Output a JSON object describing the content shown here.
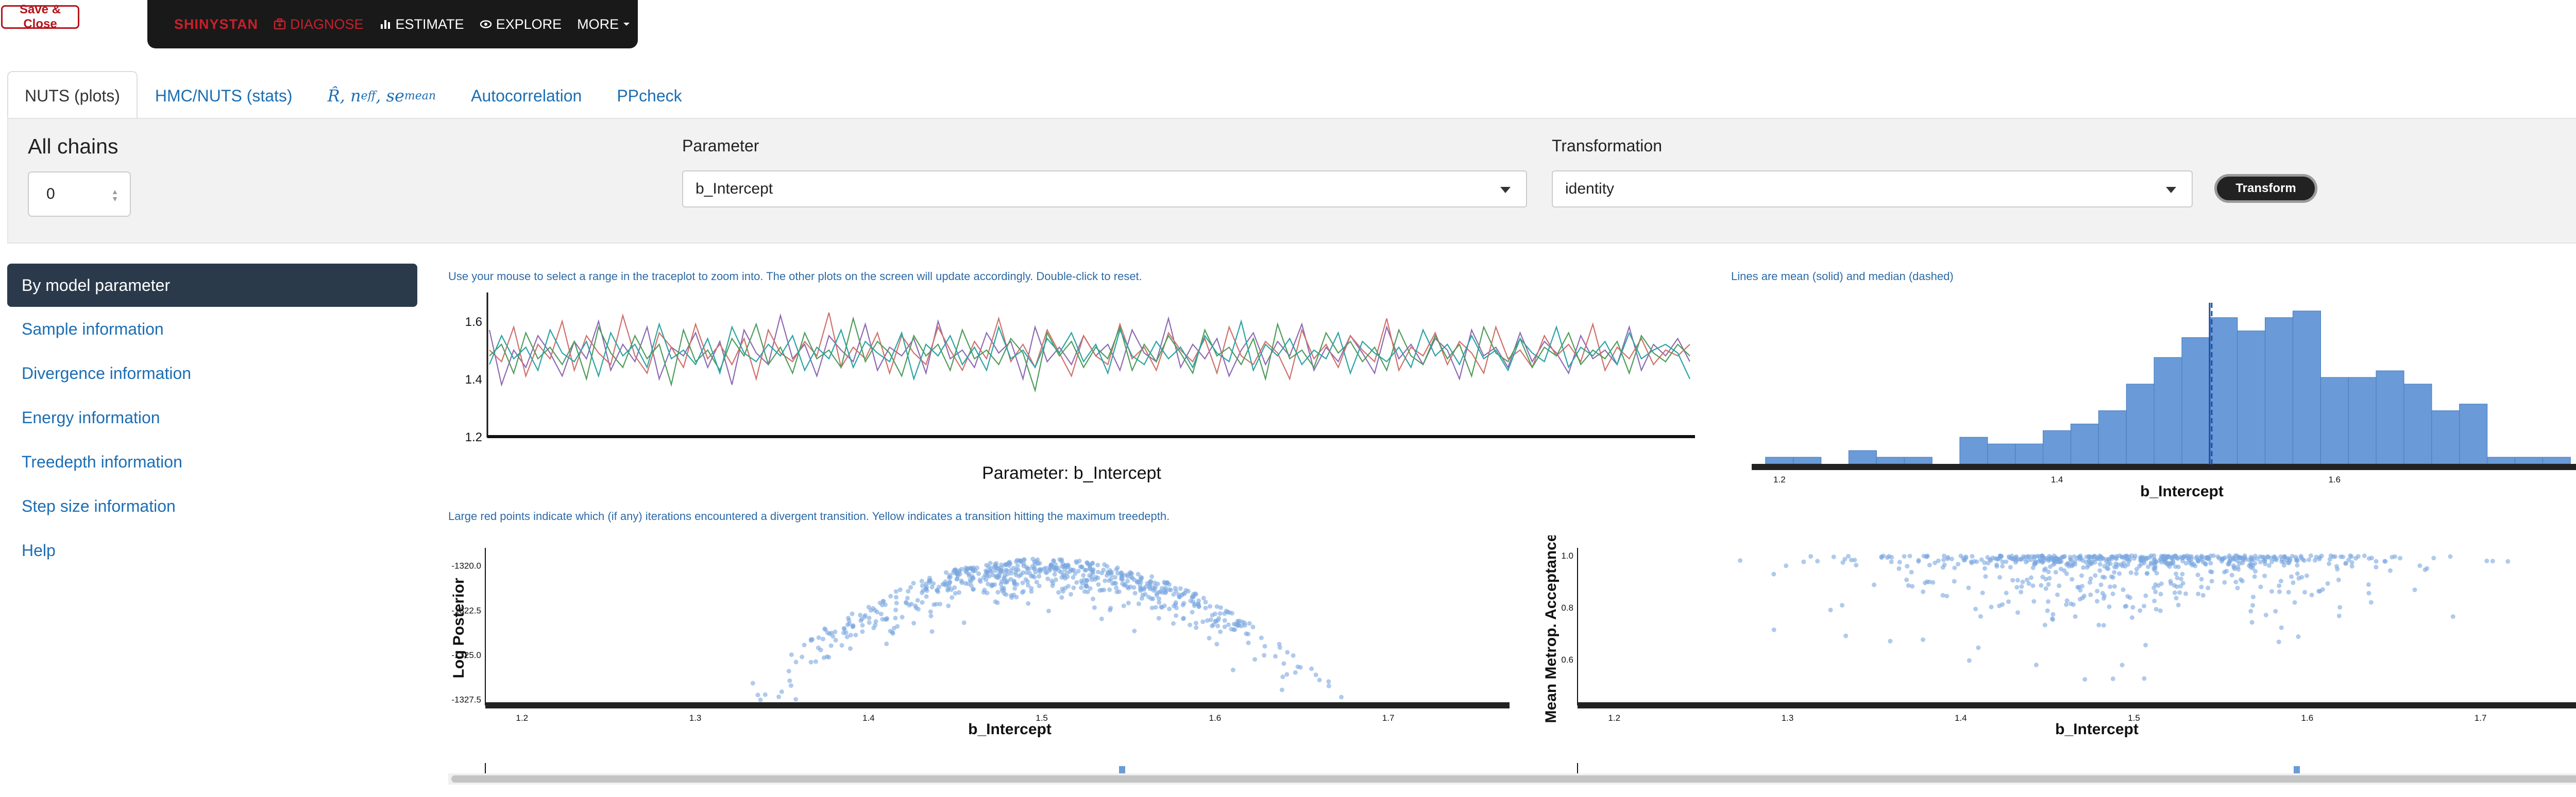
{
  "save_close": "Save & Close",
  "navbar": {
    "brand": "SHINYSTAN",
    "items": [
      {
        "label": "DIAGNOSE",
        "icon": "medkit-icon"
      },
      {
        "label": "ESTIMATE",
        "icon": "bar-chart-icon"
      },
      {
        "label": "EXPLORE",
        "icon": "eye-icon"
      },
      {
        "label": "MORE",
        "icon": "caret-down-icon"
      }
    ],
    "colors": {
      "brand": "#c8202b",
      "bg": "#191919"
    }
  },
  "tabs": [
    {
      "label": "NUTS (plots)",
      "active": true
    },
    {
      "label": "HMC/NUTS (stats)",
      "active": false
    },
    {
      "label_r": "R̂, n",
      "sub1": "eff",
      "sep": " , se",
      "sub2": "mean",
      "active": false
    },
    {
      "label": "Autocorrelation",
      "active": false
    },
    {
      "label": "PPcheck",
      "active": false
    }
  ],
  "controls": {
    "chains_title": "All chains",
    "chain_value": "0",
    "parameter_label": "Parameter",
    "parameter_value": "b_Intercept",
    "transformation_label": "Transformation",
    "transformation_value": "identity",
    "transform_button": "Transform"
  },
  "sidebar": [
    {
      "label": "By model parameter",
      "active": true
    },
    {
      "label": "Sample information"
    },
    {
      "label": "Divergence information"
    },
    {
      "label": "Energy information"
    },
    {
      "label": "Treedepth information"
    },
    {
      "label": "Step size information"
    },
    {
      "label": "Help"
    }
  ],
  "captions": {
    "trace": "Use your mouse to select a range in the traceplot to zoom into. The other plots on the screen will update accordingly. Double-click to reset.",
    "hist": "Lines are mean (solid) and median (dashed)",
    "scatter": "Large red points indicate which (if any) iterations encountered a divergent transition. Yellow indicates a transition hitting the maximum treedepth."
  },
  "chart_data": [
    {
      "type": "line",
      "title": "Parameter: b_Intercept",
      "ylim": [
        1.2,
        1.7
      ],
      "yticks": [
        "1.6",
        "1.4",
        "1.2"
      ],
      "n_iter": 100,
      "colors": [
        "#8e69b3",
        "#d0706a",
        "#4e9c5a",
        "#2aa3a3"
      ],
      "series": [
        {
          "values": [
            1.57,
            1.38,
            1.5,
            1.44,
            1.55,
            1.49,
            1.41,
            1.53,
            1.47,
            1.6,
            1.43,
            1.52,
            1.46,
            1.58,
            1.4,
            1.51,
            1.48,
            1.56,
            1.44,
            1.53,
            1.38,
            1.57,
            1.49,
            1.45,
            1.62,
            1.47,
            1.52,
            1.41,
            1.55,
            1.5,
            1.46,
            1.59,
            1.43,
            1.51,
            1.48,
            1.54,
            1.42,
            1.6,
            1.47,
            1.5,
            1.44,
            1.56,
            1.49,
            1.53,
            1.4,
            1.58,
            1.46,
            1.51,
            1.45,
            1.55,
            1.48,
            1.52,
            1.43,
            1.57,
            1.49,
            1.46,
            1.61,
            1.44,
            1.52,
            1.47,
            1.54,
            1.41,
            1.5,
            1.56,
            1.45,
            1.53,
            1.48,
            1.59,
            1.43,
            1.51,
            1.46,
            1.55,
            1.49,
            1.42,
            1.58,
            1.47,
            1.52,
            1.45,
            1.54,
            1.5,
            1.4,
            1.57,
            1.48,
            1.51,
            1.44,
            1.56,
            1.46,
            1.53,
            1.49,
            1.42,
            1.55,
            1.47,
            1.5,
            1.45,
            1.58,
            1.43,
            1.52,
            1.48,
            1.54,
            1.46
          ]
        },
        {
          "values": [
            1.5,
            1.46,
            1.58,
            1.41,
            1.52,
            1.47,
            1.6,
            1.43,
            1.55,
            1.49,
            1.45,
            1.62,
            1.48,
            1.42,
            1.56,
            1.51,
            1.44,
            1.59,
            1.47,
            1.52,
            1.45,
            1.54,
            1.4,
            1.57,
            1.49,
            1.46,
            1.53,
            1.48,
            1.63,
            1.44,
            1.51,
            1.47,
            1.56,
            1.42,
            1.55,
            1.49,
            1.45,
            1.58,
            1.5,
            1.43,
            1.53,
            1.47,
            1.61,
            1.46,
            1.52,
            1.44,
            1.57,
            1.49,
            1.41,
            1.55,
            1.48,
            1.45,
            1.59,
            1.47,
            1.51,
            1.43,
            1.56,
            1.5,
            1.46,
            1.54,
            1.42,
            1.58,
            1.48,
            1.45,
            1.53,
            1.49,
            1.4,
            1.57,
            1.47,
            1.52,
            1.44,
            1.55,
            1.5,
            1.46,
            1.61,
            1.43,
            1.51,
            1.48,
            1.56,
            1.45,
            1.53,
            1.49,
            1.42,
            1.58,
            1.47,
            1.5,
            1.44,
            1.55,
            1.48,
            1.52,
            1.46,
            1.59,
            1.43,
            1.51,
            1.47,
            1.54,
            1.45,
            1.5,
            1.48,
            1.52
          ]
        },
        {
          "values": [
            1.48,
            1.52,
            1.42,
            1.56,
            1.47,
            1.51,
            1.45,
            1.53,
            1.4,
            1.58,
            1.49,
            1.44,
            1.55,
            1.47,
            1.52,
            1.38,
            1.57,
            1.46,
            1.5,
            1.43,
            1.54,
            1.48,
            1.59,
            1.45,
            1.51,
            1.42,
            1.56,
            1.47,
            1.5,
            1.44,
            1.61,
            1.46,
            1.53,
            1.49,
            1.41,
            1.55,
            1.48,
            1.52,
            1.43,
            1.57,
            1.47,
            1.5,
            1.45,
            1.54,
            1.49,
            1.36,
            1.56,
            1.48,
            1.53,
            1.44,
            1.51,
            1.47,
            1.58,
            1.43,
            1.52,
            1.46,
            1.55,
            1.49,
            1.42,
            1.57,
            1.48,
            1.51,
            1.45,
            1.54,
            1.4,
            1.59,
            1.47,
            1.5,
            1.44,
            1.56,
            1.49,
            1.53,
            1.46,
            1.51,
            1.43,
            1.57,
            1.48,
            1.45,
            1.55,
            1.47,
            1.52,
            1.41,
            1.58,
            1.49,
            1.46,
            1.54,
            1.44,
            1.51,
            1.48,
            1.56,
            1.45,
            1.5,
            1.47,
            1.53,
            1.42,
            1.55,
            1.49,
            1.46,
            1.52,
            1.48
          ]
        },
        {
          "values": [
            1.45,
            1.55,
            1.47,
            1.51,
            1.43,
            1.57,
            1.49,
            1.46,
            1.53,
            1.41,
            1.56,
            1.48,
            1.52,
            1.44,
            1.59,
            1.47,
            1.5,
            1.45,
            1.54,
            1.42,
            1.58,
            1.49,
            1.46,
            1.52,
            1.48,
            1.55,
            1.43,
            1.51,
            1.47,
            1.57,
            1.44,
            1.53,
            1.49,
            1.46,
            1.56,
            1.4,
            1.52,
            1.48,
            1.55,
            1.45,
            1.51,
            1.43,
            1.58,
            1.47,
            1.5,
            1.44,
            1.54,
            1.49,
            1.56,
            1.46,
            1.52,
            1.42,
            1.57,
            1.48,
            1.45,
            1.53,
            1.47,
            1.51,
            1.44,
            1.55,
            1.49,
            1.46,
            1.6,
            1.43,
            1.52,
            1.48,
            1.54,
            1.45,
            1.5,
            1.47,
            1.56,
            1.42,
            1.53,
            1.49,
            1.46,
            1.51,
            1.44,
            1.57,
            1.48,
            1.52,
            1.45,
            1.55,
            1.47,
            1.5,
            1.43,
            1.54,
            1.49,
            1.46,
            1.58,
            1.44,
            1.51,
            1.48,
            1.53,
            1.45,
            1.56,
            1.47,
            1.5,
            1.52,
            1.49,
            1.4
          ]
        }
      ]
    },
    {
      "type": "bar",
      "xlabel": "b_Intercept",
      "xlim": [
        1.18,
        1.8
      ],
      "xticks": [
        "1.2",
        "1.4",
        "1.6"
      ],
      "bin_start": 1.19,
      "bin_width": 0.02,
      "counts": [
        1,
        1,
        0,
        2,
        1,
        1,
        0,
        4,
        3,
        3,
        5,
        6,
        8,
        12,
        16,
        19,
        22,
        20,
        22,
        23,
        13,
        13,
        14,
        12,
        8,
        9,
        1,
        1,
        1,
        0,
        1,
        0,
        1
      ],
      "mean": 1.51,
      "median": 1.51,
      "color": "#6a9bd8"
    },
    {
      "type": "scatter",
      "xlabel": "b_Intercept",
      "ylabel": "Log Posterior",
      "xlim": [
        1.18,
        1.77
      ],
      "ylim": [
        -1327.6,
        -1319.0
      ],
      "xticks": [
        "1.2",
        "1.3",
        "1.4",
        "1.5",
        "1.6",
        "1.7"
      ],
      "yticks": [
        "-1320.0",
        "-1322.5",
        "-1325.0",
        "-1327.5"
      ],
      "color": "#7aa6e0"
    },
    {
      "type": "scatter",
      "xlabel": "b_Intercept",
      "ylabel": "Mean Metrop. Acceptance",
      "xlim": [
        1.18,
        1.77
      ],
      "ylim": [
        0.44,
        1.03
      ],
      "xticks": [
        "1.2",
        "1.3",
        "1.4",
        "1.5",
        "1.6",
        "1.7"
      ],
      "yticks": [
        "1.0",
        "0.8",
        "0.6"
      ],
      "color": "#7aa6e0"
    }
  ]
}
